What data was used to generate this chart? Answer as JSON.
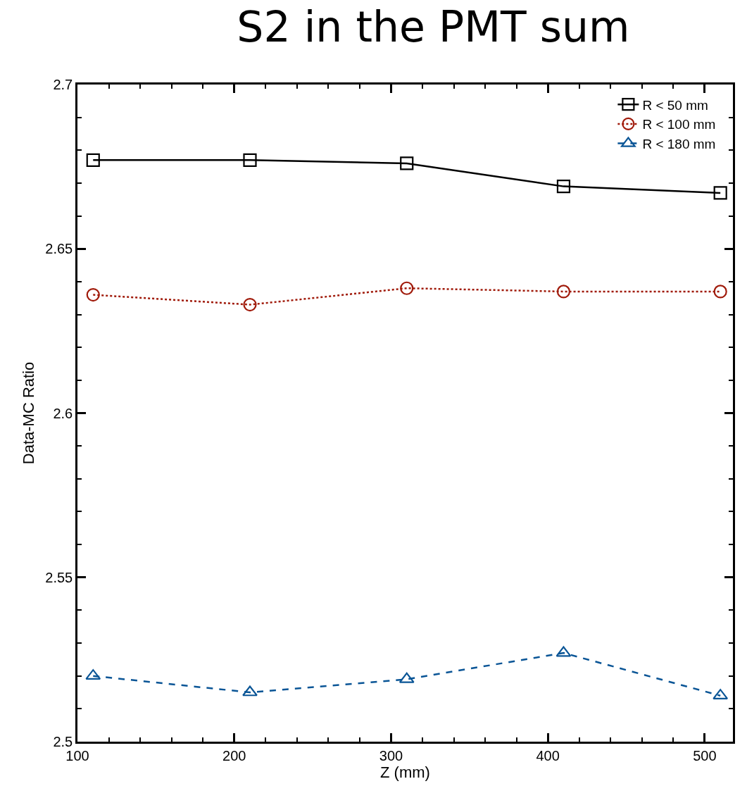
{
  "chart_data": {
    "type": "line",
    "title": "S2 in the PMT sum",
    "xlabel": "Z (mm)",
    "ylabel": "Data-MC Ratio",
    "x": [
      110,
      210,
      310,
      410,
      510
    ],
    "series": [
      {
        "name": "R < 50 mm",
        "color": "#000000",
        "marker": "square",
        "line_style": "solid",
        "values": [
          2.677,
          2.677,
          2.676,
          2.669,
          2.667
        ]
      },
      {
        "name": "R < 100 mm",
        "color": "#a01a0a",
        "marker": "circle",
        "line_style": "dotted",
        "values": [
          2.636,
          2.633,
          2.638,
          2.637,
          2.637
        ]
      },
      {
        "name": "R < 180 mm",
        "color": "#0a5596",
        "marker": "triangle",
        "line_style": "dashed",
        "values": [
          2.52,
          2.515,
          2.519,
          2.527,
          2.514
        ]
      }
    ],
    "xlim": [
      100,
      518
    ],
    "xticks": [
      100,
      200,
      300,
      400,
      500
    ],
    "ylim": [
      2.5,
      2.7
    ],
    "yticks": [
      2.5,
      2.55,
      2.6,
      2.65,
      2.7
    ],
    "legend": "top right"
  }
}
